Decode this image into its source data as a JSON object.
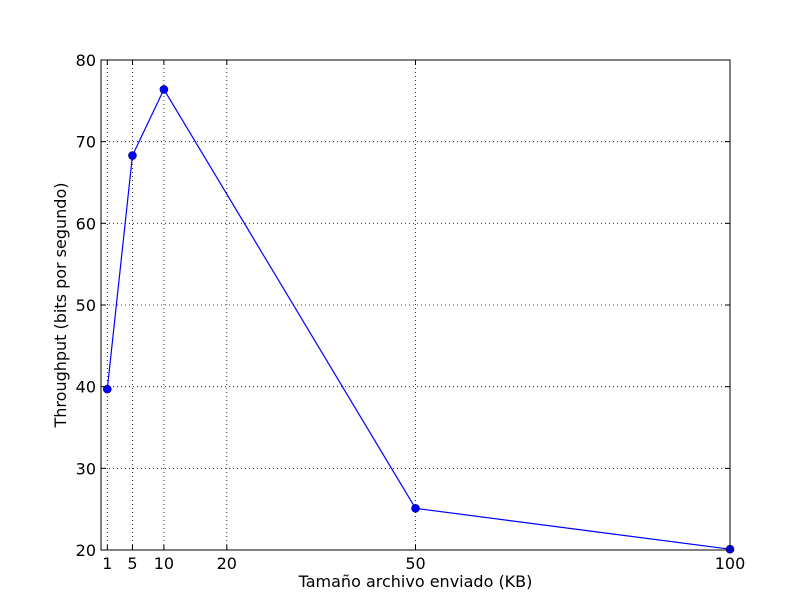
{
  "chart_data": {
    "type": "line",
    "title": "",
    "xlabel": "Tamaño archivo enviado (KB)",
    "ylabel": "Throughput (bits por segundo)",
    "xlim": [
      0,
      100
    ],
    "ylim": [
      20,
      80
    ],
    "xticks": [
      1,
      5,
      10,
      20,
      50,
      100
    ],
    "yticks": [
      20,
      30,
      40,
      50,
      60,
      70,
      80
    ],
    "grid": true,
    "series": [
      {
        "color": "#0000ff",
        "marker": "circle",
        "x": [
          1,
          5,
          10,
          50,
          100
        ],
        "y": [
          39.7,
          68.3,
          76.4,
          25.1,
          20.1
        ]
      }
    ]
  }
}
